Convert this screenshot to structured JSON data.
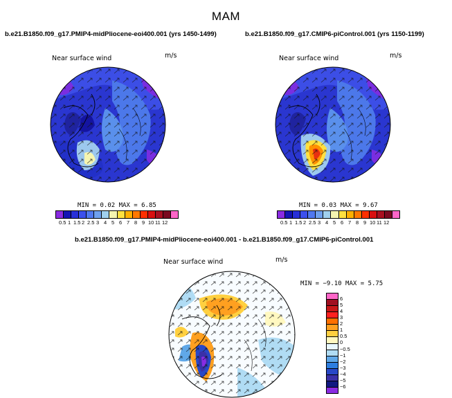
{
  "figure": {
    "title": "MAM"
  },
  "panels": [
    {
      "title": "b.e21.B1850.f09_g17.PMIP4-midPliocene-eoi400.001 (yrs 1450-1499)",
      "variable": "Near surface wind",
      "units": "m/s",
      "stats": "MIN =    0.02  MAX =    6.85"
    },
    {
      "title": "b.e21.B1850.f09_g17.CMIP6-piControl.001 (yrs 1150-1199)",
      "variable": "Near surface wind",
      "units": "m/s",
      "stats": "MIN =    0.03  MAX =    9.67"
    },
    {
      "title": "b.e21.B1850.f09_g17.PMIP4-midPliocene-eoi400.001 - b.e21.B1850.f09_g17.CMIP6-piControl.001",
      "variable": "Near surface wind",
      "units": "m/s",
      "stats": "MIN =  −9.10  MAX =    5.75"
    }
  ],
  "colorbar_abs": {
    "labels": [
      "0.5",
      "1",
      "1.5",
      "2",
      "2.5",
      "3",
      "4",
      "5",
      "6",
      "7",
      "8",
      "9",
      "10",
      "11",
      "12"
    ],
    "colors": [
      "#8a2be2",
      "#1414b4",
      "#2830d8",
      "#3c50ec",
      "#5078f0",
      "#6fa0ee",
      "#a0d0ee",
      "#f5f5b0",
      "#ffe040",
      "#ffb000",
      "#ff7800",
      "#ff3000",
      "#d81010",
      "#a81020",
      "#7a0a20",
      "#ff66c8"
    ]
  },
  "colorbar_diff": {
    "labels": [
      "6",
      "5",
      "4",
      "3",
      "2",
      "1",
      "0.5",
      "0",
      "−0.5",
      "−1",
      "−2",
      "−3",
      "−4",
      "−5",
      "−6"
    ],
    "colors": [
      "#ff66c8",
      "#a01020",
      "#c81818",
      "#ff2020",
      "#ff7000",
      "#ffa020",
      "#ffd040",
      "#fff8c0",
      "#e8f8ff",
      "#b0dcf4",
      "#60a8e8",
      "#2e7ee0",
      "#2848c8",
      "#3a30a8",
      "#101880",
      "#8a2be2"
    ]
  }
}
